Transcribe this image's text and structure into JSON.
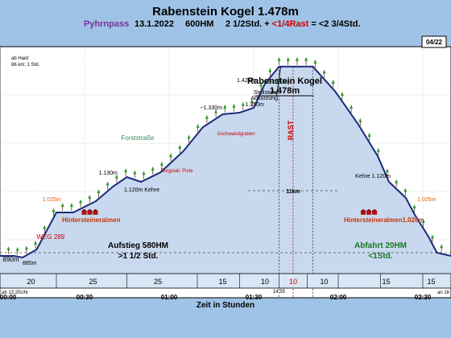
{
  "chart_data": {
    "type": "area",
    "title": "Rabenstein Kogel 1.478m",
    "subtitle": {
      "route": "Pyhrnpass",
      "date": "13.1.2022",
      "hm": "600HM",
      "time_main": "2 1/2Std. + ",
      "time_rast": "<1/4Rast",
      "time_tail": " = <2 3/4Std."
    },
    "badge": "04/22",
    "peak_label": {
      "name": "Rabenstein Kogel",
      "elev": "1.478m"
    },
    "start_note": [
      "ab Haid:",
      "86 km; 1 Std."
    ],
    "x_ticks": [
      "00:00",
      "00:30",
      "01:00",
      "01:30",
      "02:00",
      "02:30"
    ],
    "xlabel": "Zeit in Stunden",
    "x_range_minutes": [
      0,
      160
    ],
    "y_range_m": [
      760,
      1540
    ],
    "grid": true,
    "profile": [
      {
        "t": 0,
        "elev": 890
      },
      {
        "t": 5,
        "elev": 890
      },
      {
        "t": 8,
        "elev": 885
      },
      {
        "t": 13,
        "elev": 910
      },
      {
        "t": 20,
        "elev": 1025
      },
      {
        "t": 26,
        "elev": 1025
      },
      {
        "t": 34,
        "elev": 1060
      },
      {
        "t": 40,
        "elev": 1105
      },
      {
        "t": 45,
        "elev": 1135
      },
      {
        "t": 50,
        "elev": 1120
      },
      {
        "t": 57,
        "elev": 1150
      },
      {
        "t": 65,
        "elev": 1215
      },
      {
        "t": 72,
        "elev": 1290
      },
      {
        "t": 79,
        "elev": 1330
      },
      {
        "t": 85,
        "elev": 1335
      },
      {
        "t": 90,
        "elev": 1350
      },
      {
        "t": 94,
        "elev": 1425
      },
      {
        "t": 99,
        "elev": 1478
      },
      {
        "t": 111,
        "elev": 1478
      },
      {
        "t": 119,
        "elev": 1400
      },
      {
        "t": 127,
        "elev": 1300
      },
      {
        "t": 134,
        "elev": 1200
      },
      {
        "t": 138,
        "elev": 1120
      },
      {
        "t": 144,
        "elev": 1070
      },
      {
        "t": 147,
        "elev": 1020
      },
      {
        "t": 152,
        "elev": 950
      },
      {
        "t": 155,
        "elev": 900
      },
      {
        "t": 160,
        "elev": 890
      }
    ],
    "labels": [
      {
        "text": "890m",
        "t": 1,
        "elev": 873,
        "color": "#000000",
        "size": 8
      },
      {
        "text": "885m",
        "t": 8,
        "elev": 863,
        "color": "#000000",
        "size": 7
      },
      {
        "text": "WEG 289",
        "t": 13,
        "elev": 942,
        "color": "#cc0000",
        "size": 8
      },
      {
        "text": "1.025m",
        "t": 15,
        "elev": 1060,
        "color": "#e06000",
        "size": 7
      },
      {
        "text": "Hintersteineralmen",
        "t": 22,
        "elev": 995,
        "color": "#cc3300",
        "size": 8,
        "bold": true
      },
      {
        "text": "1.130m",
        "t": 35,
        "elev": 1143,
        "color": "#000000",
        "size": 7
      },
      {
        "text": "1.120m Kehre",
        "t": 44,
        "elev": 1090,
        "color": "#000000",
        "size": 7
      },
      {
        "text": "Burgstall, Piste",
        "t": 57,
        "elev": 1150,
        "color": "#cc0000",
        "size": 6
      },
      {
        "text": "Forststraße",
        "t": 43,
        "elev": 1250,
        "color": "#2e8b57",
        "size": 8
      },
      {
        "text": "~1.330m",
        "t": 71,
        "elev": 1345,
        "color": "#000000",
        "size": 7
      },
      {
        "text": "Gschwandgraben",
        "t": 77,
        "elev": 1265,
        "color": "#cc0000",
        "size": 6
      },
      {
        "text": "1.425m",
        "t": 84,
        "elev": 1430,
        "color": "#000000",
        "size": 7
      },
      {
        "text": "1.350m",
        "t": 87,
        "elev": 1355,
        "color": "#000000",
        "size": 7
      },
      {
        "text": "Kahlschlag",
        "t": 93,
        "elev": 1425,
        "color": "#2e8b57",
        "size": 7
      },
      {
        "text": "Steilstufe",
        "t": 90,
        "elev": 1393,
        "color": "#000000",
        "size": 7
      },
      {
        "text": "Abkürzung",
        "t": 89,
        "elev": 1375,
        "color": "#000000",
        "size": 7
      },
      {
        "text": "Kehre 1.120m",
        "t": 126,
        "elev": 1133,
        "color": "#000000",
        "size": 7
      },
      {
        "text": "Hintersteineralmen1.020m",
        "t": 122,
        "elev": 995,
        "color": "#cc3300",
        "size": 8,
        "bold": true
      },
      {
        "text": "1.025m",
        "t": 148,
        "elev": 1060,
        "color": "#e06000",
        "size": 7
      }
    ],
    "rast": {
      "label": "RAST",
      "t": 104,
      "elev": 1280
    },
    "distance": {
      "label": "11km",
      "t": 104,
      "elev": 1085,
      "t_from": 88,
      "t_to": 120
    },
    "segment_label_elev": 915,
    "segments": [
      {
        "title": "Aufstieg 580HM",
        "sub": ">1 1/2 Std.",
        "t": 49,
        "color": "#000000",
        "t_from": 0,
        "t_to": 99
      },
      {
        "title": "Abfahrt 20HM",
        "sub": "<1Std.",
        "t": 135,
        "color": "#1a7a1a",
        "t_from": 111,
        "t_to": 160
      }
    ],
    "bottom_row": {
      "minutes": [
        {
          "v": "20",
          "t": 11,
          "color": "#000000"
        },
        {
          "v": "25",
          "t": 33,
          "color": "#000000"
        },
        {
          "v": "25",
          "t": 56,
          "color": "#000000"
        },
        {
          "v": "15",
          "t": 79,
          "color": "#000000"
        },
        {
          "v": "10",
          "t": 94,
          "color": "#000000"
        },
        {
          "v": "10",
          "t": 104,
          "color": "#cc0000"
        },
        {
          "v": "10",
          "t": 115,
          "color": "#000000"
        },
        {
          "v": "15",
          "t": 137,
          "color": "#000000"
        },
        {
          "v": "15",
          "t": 153,
          "color": "#000000"
        }
      ],
      "dividers": [
        20,
        45,
        70,
        85,
        99,
        109,
        120,
        135,
        150
      ],
      "start_time": "ab 13.20Uhr",
      "mid_time": "14.55",
      "end_time": "an 16"
    }
  }
}
